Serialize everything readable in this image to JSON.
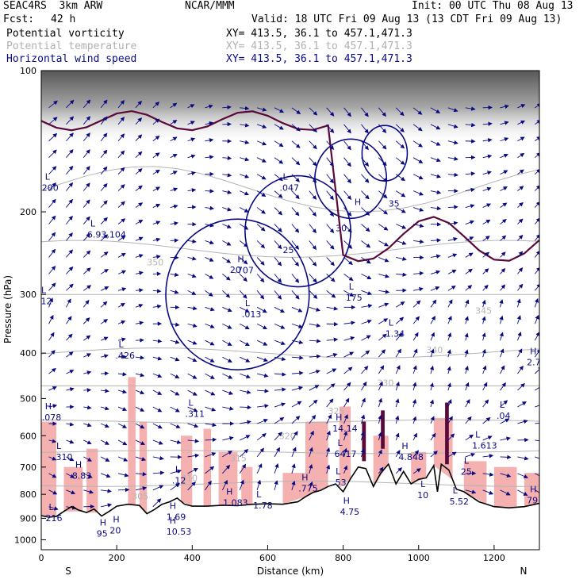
{
  "header": {
    "model": "SEAC4RS  3km ARW",
    "center": "NCAR/MMM",
    "init": "Init: 00 UTC Thu 08 Aug 13",
    "fcst_label": "Fcst:",
    "fcst_value": "42 h",
    "valid": "Valid: 18 UTC Fri 09 Aug 13 (13 CDT Fri 09 Aug 13)"
  },
  "fields": [
    {
      "name": "Potential vorticity",
      "xy": "XY= 413.5, 36.1 to 457.1,471.3",
      "color": "#000000"
    },
    {
      "name": "Potential temperature",
      "xy": "XY= 413.5, 36.1 to 457.1,471.3",
      "color": "#b0b0b0"
    },
    {
      "name": "Horizontal wind speed",
      "xy": "XY= 413.5, 36.1 to 457.1,471.3",
      "color": "#0a0a82"
    }
  ],
  "colors": {
    "wind": "#0a0a82",
    "theta": "#b4b4b4",
    "pv_fill": "#f5b0b0",
    "pv_dark": "#5a0a3a",
    "terrain": "#000000"
  },
  "chart_data": {
    "type": "cross-section",
    "xlabel": "Distance (km)",
    "ylabel": "Pressure (hPa)",
    "xlim": [
      0,
      1320
    ],
    "ylim": [
      1050,
      100
    ],
    "y_scale": "log-pressure",
    "x_ticks": [
      "0",
      "200",
      "400",
      "600",
      "800",
      "1000",
      "1200"
    ],
    "y_ticks": [
      "100",
      "200",
      "300",
      "400",
      "500",
      "600",
      "700",
      "800",
      "900",
      "1000"
    ],
    "end_labels": {
      "left": "S",
      "right": "N"
    },
    "terrain_pressure": [
      [
        0,
        888
      ],
      [
        20,
        895
      ],
      [
        40,
        892
      ],
      [
        60,
        870
      ],
      [
        80,
        850
      ],
      [
        100,
        865
      ],
      [
        120,
        875
      ],
      [
        140,
        860
      ],
      [
        160,
        890
      ],
      [
        180,
        870
      ],
      [
        200,
        848
      ],
      [
        230,
        840
      ],
      [
        260,
        845
      ],
      [
        280,
        880
      ],
      [
        300,
        862
      ],
      [
        320,
        840
      ],
      [
        340,
        830
      ],
      [
        360,
        815
      ],
      [
        380,
        840
      ],
      [
        400,
        848
      ],
      [
        440,
        848
      ],
      [
        480,
        844
      ],
      [
        520,
        846
      ],
      [
        560,
        840
      ],
      [
        600,
        838
      ],
      [
        640,
        840
      ],
      [
        680,
        830
      ],
      [
        700,
        810
      ],
      [
        720,
        793
      ],
      [
        740,
        785
      ],
      [
        760,
        770
      ],
      [
        780,
        760
      ],
      [
        800,
        790
      ],
      [
        820,
        740
      ],
      [
        840,
        700
      ],
      [
        860,
        705
      ],
      [
        880,
        770
      ],
      [
        900,
        720
      ],
      [
        920,
        690
      ],
      [
        940,
        760
      ],
      [
        960,
        715
      ],
      [
        980,
        760
      ],
      [
        1000,
        743
      ],
      [
        1020,
        738
      ],
      [
        1040,
        695
      ],
      [
        1050,
        790
      ],
      [
        1060,
        690
      ],
      [
        1080,
        710
      ],
      [
        1100,
        780
      ],
      [
        1120,
        790
      ],
      [
        1160,
        830
      ],
      [
        1200,
        850
      ],
      [
        1240,
        855
      ],
      [
        1280,
        850
      ],
      [
        1320,
        836
      ]
    ],
    "wind_speed_contours": [
      "20",
      "25",
      "30",
      "35"
    ],
    "theta_contours": [
      "305",
      "310",
      "315",
      "320",
      "325",
      "330",
      "340",
      "345",
      "350"
    ],
    "extrema": [
      {
        "type": "L",
        "x": 10,
        "p": 175,
        "value": "200"
      },
      {
        "type": "L",
        "x": 130,
        "p": 220,
        "value": "6.93,104"
      },
      {
        "type": "L",
        "x": 0,
        "p": 305,
        "value": ".12"
      },
      {
        "type": "L",
        "x": 205,
        "p": 398,
        "value": ".426"
      },
      {
        "type": "H",
        "x": 520,
        "p": 262,
        "value": ".707"
      },
      {
        "type": "L",
        "x": 540,
        "p": 325,
        "value": ".013"
      },
      {
        "type": "L",
        "x": 640,
        "p": 175,
        "value": ".047"
      },
      {
        "type": "H",
        "x": 830,
        "p": 198,
        "value": ""
      },
      {
        "type": "L",
        "x": 815,
        "p": 300,
        "value": "175"
      },
      {
        "type": "L",
        "x": 920,
        "p": 358,
        "value": "1.34"
      },
      {
        "type": "H",
        "x": 1295,
        "p": 412,
        "value": "2.7"
      },
      {
        "type": "H",
        "x": 10,
        "p": 540,
        "value": ".078"
      },
      {
        "type": "L",
        "x": 390,
        "p": 530,
        "value": ".311"
      },
      {
        "type": "L",
        "x": 1215,
        "p": 535,
        "value": ".04"
      },
      {
        "type": "H",
        "x": 780,
        "p": 570,
        "value": "14.14"
      },
      {
        "type": "L",
        "x": 785,
        "p": 645,
        "value": "6417"
      },
      {
        "type": "H",
        "x": 955,
        "p": 655,
        "value": "4.848"
      },
      {
        "type": "L",
        "x": 1150,
        "p": 620,
        "value": "1.613"
      },
      {
        "type": "L",
        "x": 40,
        "p": 655,
        "value": ".310"
      },
      {
        "type": "H",
        "x": 90,
        "p": 718,
        "value": "8.83"
      },
      {
        "type": "L",
        "x": 355,
        "p": 735,
        "value": ".12"
      },
      {
        "type": "L",
        "x": 1120,
        "p": 705,
        "value": "25"
      },
      {
        "type": "H",
        "x": 690,
        "p": 765,
        "value": ".775"
      },
      {
        "type": "L",
        "x": 780,
        "p": 742,
        "value": ".53"
      },
      {
        "type": "L",
        "x": 1005,
        "p": 790,
        "value": "10"
      },
      {
        "type": "L",
        "x": 1090,
        "p": 815,
        "value": "5.52"
      },
      {
        "type": "H",
        "x": 1295,
        "p": 810,
        "value": "79"
      },
      {
        "type": "H",
        "x": 490,
        "p": 820,
        "value": "1.083"
      },
      {
        "type": "L",
        "x": 570,
        "p": 832,
        "value": "1.78"
      },
      {
        "type": "H",
        "x": 800,
        "p": 858,
        "value": "4.75"
      },
      {
        "type": "H",
        "x": 340,
        "p": 880,
        "value": "1.69"
      },
      {
        "type": "H",
        "x": 340,
        "p": 945,
        "value": "10.53"
      },
      {
        "type": "H",
        "x": 190,
        "p": 940,
        "value": "20"
      },
      {
        "type": "H",
        "x": 155,
        "p": 955,
        "value": "95"
      },
      {
        "type": "L",
        "x": 20,
        "p": 885,
        "value": "216"
      }
    ]
  }
}
